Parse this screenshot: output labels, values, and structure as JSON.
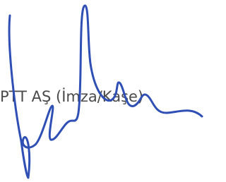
{
  "stamp_label": "PTT AŞ (İmza/Kaşe)"
}
